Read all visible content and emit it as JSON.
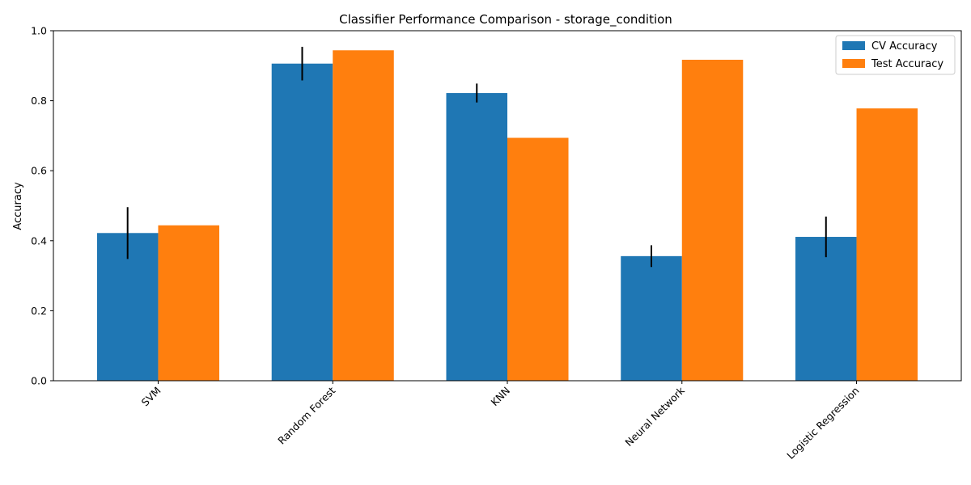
{
  "chart_data": {
    "type": "bar",
    "title": "Classifier Performance Comparison - storage_condition",
    "xlabel": "",
    "ylabel": "Accuracy",
    "ylim": [
      0,
      1.0
    ],
    "yticks": [
      "0.0",
      "0.2",
      "0.4",
      "0.6",
      "0.8",
      "1.0"
    ],
    "categories": [
      "SVM",
      "Random Forest",
      "KNN",
      "Neural Network",
      "Logistic Regression"
    ],
    "series": [
      {
        "name": "CV Accuracy",
        "color": "#1f77b4",
        "values": [
          0.422,
          0.906,
          0.822,
          0.356,
          0.411
        ],
        "errors": [
          0.074,
          0.048,
          0.027,
          0.031,
          0.058
        ]
      },
      {
        "name": "Test Accuracy",
        "color": "#ff7f0e",
        "values": [
          0.444,
          0.944,
          0.694,
          0.917,
          0.778
        ]
      }
    ],
    "legend_position": "top-right",
    "grid": false
  }
}
